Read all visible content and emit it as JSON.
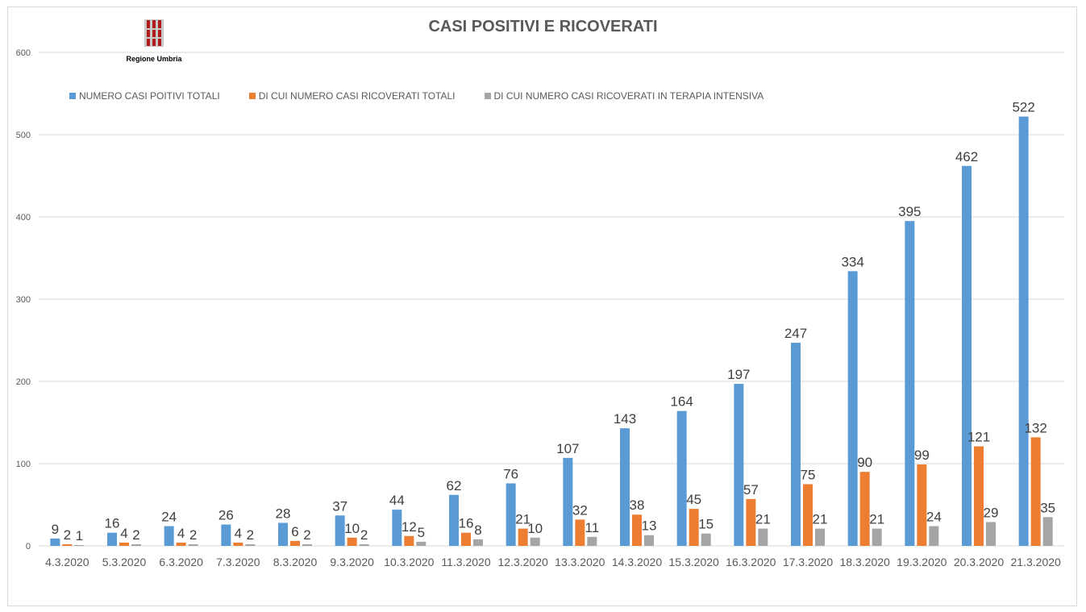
{
  "chart_data": {
    "type": "bar",
    "title": "CASI POSITIVI E RICOVERATI",
    "xlabel": "",
    "ylabel": "",
    "ylim": [
      0,
      600
    ],
    "yticks": [
      0,
      100,
      200,
      300,
      400,
      500,
      600
    ],
    "grid": true,
    "legend_position": "top-left",
    "categories": [
      "4.3.2020",
      "5.3.2020",
      "6.3.2020",
      "7.3.2020",
      "8.3.2020",
      "9.3.2020",
      "10.3.2020",
      "11.3.2020",
      "12.3.2020",
      "13.3.2020",
      "14.3.2020",
      "15.3.2020",
      "16.3.2020",
      "17.3.2020",
      "18.3.2020",
      "19.3.2020",
      "20.3.2020",
      "21.3.2020"
    ],
    "series": [
      {
        "name": "NUMERO CASI POITIVI TOTALI",
        "color": "#5b9bd5",
        "values": [
          9,
          16,
          24,
          26,
          28,
          37,
          44,
          62,
          76,
          107,
          143,
          164,
          197,
          247,
          334,
          395,
          462,
          522
        ]
      },
      {
        "name": "DI CUI NUMERO CASI RICOVERATI TOTALI",
        "color": "#ed7d31",
        "values": [
          2,
          4,
          4,
          4,
          6,
          10,
          12,
          16,
          21,
          32,
          38,
          45,
          57,
          75,
          90,
          99,
          121,
          132
        ]
      },
      {
        "name": "DI CUI NUMERO CASI RICOVERATI IN TERAPIA INTENSIVA",
        "color": "#a5a5a5",
        "values": [
          1,
          2,
          2,
          2,
          2,
          2,
          5,
          8,
          10,
          11,
          13,
          15,
          21,
          21,
          21,
          24,
          29,
          35
        ]
      }
    ]
  },
  "logo": {
    "text": "Regione Umbria",
    "color": "#b01c1c"
  },
  "colors": {
    "grid": "#d9d9d9",
    "text": "#595959"
  }
}
